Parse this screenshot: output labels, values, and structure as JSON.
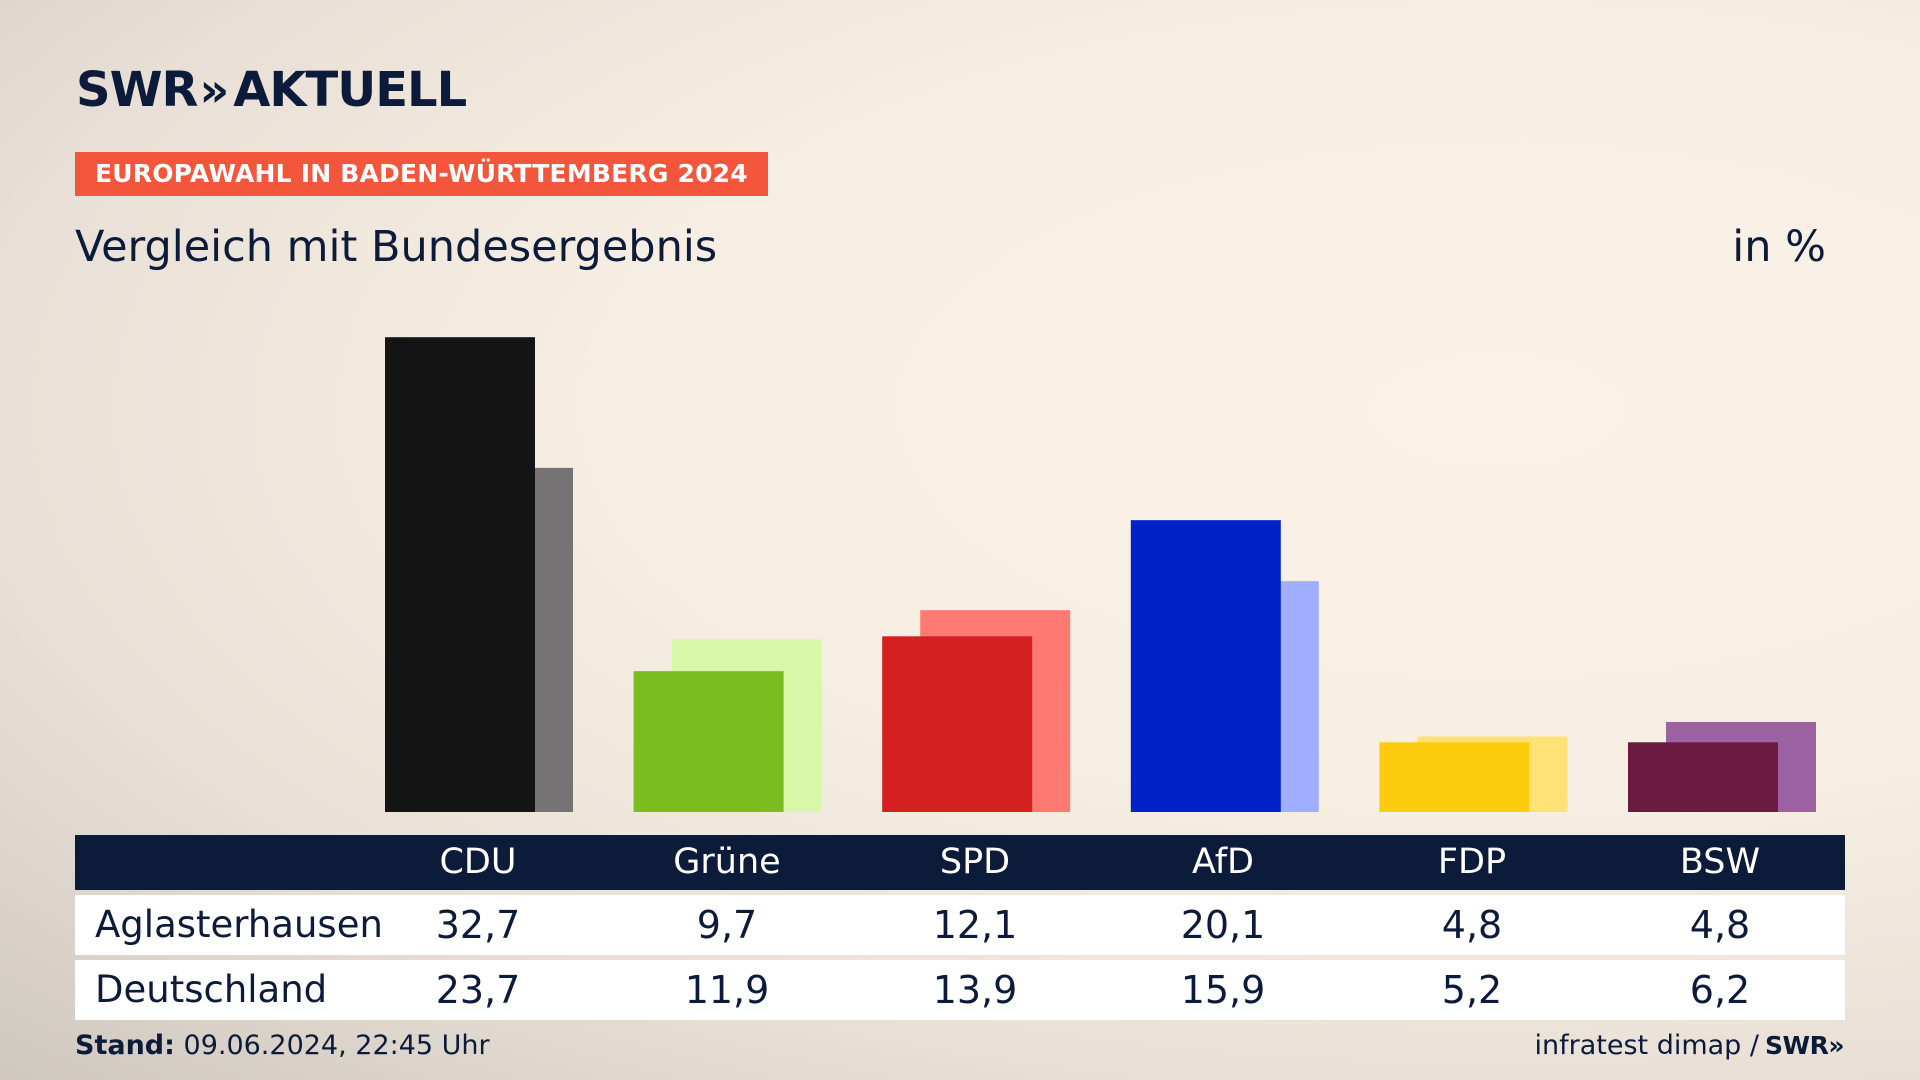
{
  "header": {
    "logo_main": "SWR",
    "logo_chevrons": "»",
    "logo_sub": "AKTUELL",
    "tag": "EUROPAWAHL IN BADEN-WÜRTTEMBERG 2024",
    "subtitle": "Vergleich mit Bundesergebnis",
    "unit": "in %"
  },
  "table": {
    "row_labels": [
      "Aglasterhausen",
      "Deutschland"
    ],
    "parties": [
      "CDU",
      "Grüne",
      "SPD",
      "AfD",
      "FDP",
      "BSW"
    ],
    "local_display": [
      "32,7",
      "9,7",
      "12,1",
      "20,1",
      "4,8",
      "4,8"
    ],
    "national_display": [
      "23,7",
      "11,9",
      "13,9",
      "15,9",
      "5,2",
      "6,2"
    ]
  },
  "footer": {
    "stand_label": "Stand:",
    "stand_value": "09.06.2024, 22:45 Uhr",
    "source": "infratest dimap /",
    "swr_small": "SWR»"
  },
  "chart_data": {
    "type": "bar",
    "categories": [
      "CDU",
      "Grüne",
      "SPD",
      "AfD",
      "FDP",
      "BSW"
    ],
    "series": [
      {
        "name": "Aglasterhausen",
        "values": [
          32.7,
          9.7,
          12.1,
          20.1,
          4.8,
          4.8
        ]
      },
      {
        "name": "Deutschland",
        "values": [
          23.7,
          11.9,
          13.9,
          15.9,
          5.2,
          6.2
        ]
      }
    ],
    "colors_local": [
      "#141414",
      "#7bbd1f",
      "#d42020",
      "#0022c8",
      "#fdcc0e",
      "#6b1a40"
    ],
    "colors_national": [
      "#757373",
      "#d7f7a9",
      "#ff7a72",
      "#a1aeff",
      "#ffe175",
      "#9b61a0"
    ],
    "ylabel": "in %",
    "ylim": [
      0,
      33
    ],
    "grid": false
  }
}
